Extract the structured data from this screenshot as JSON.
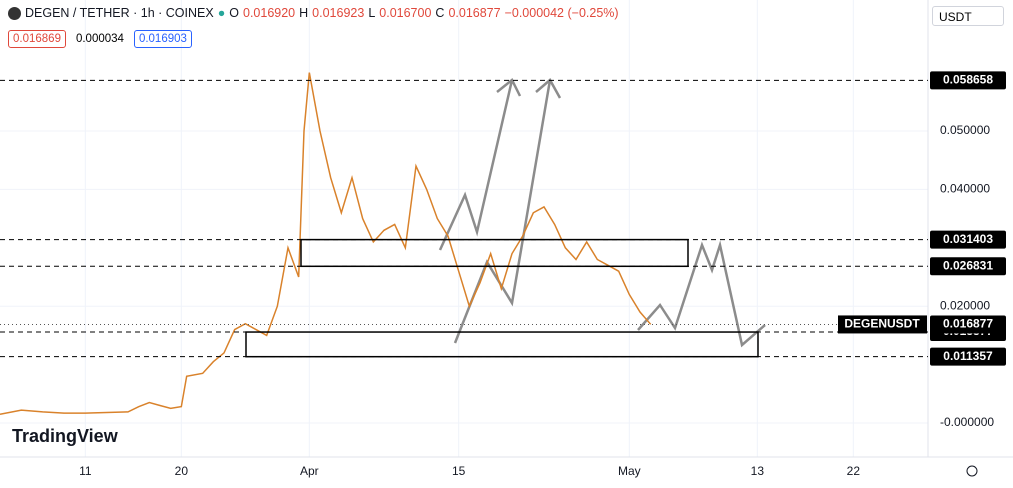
{
  "chart_data": {
    "type": "line",
    "title": "DEGEN / TETHER · 1h · COINEX",
    "ohlc": [
      {
        "name": "O",
        "value": 0.01692,
        "label": "0.016920"
      },
      {
        "name": "H",
        "value": 0.016923,
        "label": "0.016923"
      },
      {
        "name": "L",
        "value": 0.0167,
        "label": "0.016700"
      },
      {
        "name": "C",
        "value": 0.016877,
        "label": "0.016877"
      }
    ],
    "change": "−0.000042 (−0.25%)",
    "badges": [
      0.016869,
      3.4e-05,
      0.016903
    ],
    "currency": "USDT",
    "brand": "TradingView",
    "symbol": "DEGENUSDT",
    "last_price": 0.016877,
    "color": "#d9822b",
    "grid": true,
    "x": [
      63,
      65,
      67,
      69,
      71,
      73,
      75,
      76,
      77,
      78,
      79,
      80,
      80.5,
      82,
      83,
      84,
      85,
      86,
      87,
      88,
      89,
      90,
      91,
      91.5,
      92,
      93,
      94,
      95,
      96,
      97,
      98,
      99,
      100,
      101,
      102,
      103,
      104,
      105,
      106,
      107,
      108,
      109,
      110,
      111,
      112,
      113,
      114,
      115,
      116,
      117,
      118,
      119,
      120,
      121,
      122,
      123,
      124
    ],
    "values": [
      0.0015,
      0.0022,
      0.0019,
      0.0017,
      0.0017,
      0.0018,
      0.0019,
      0.0028,
      0.0035,
      0.003,
      0.0025,
      0.0028,
      0.008,
      0.0085,
      0.0105,
      0.012,
      0.016,
      0.017,
      0.016,
      0.015,
      0.02,
      0.03,
      0.025,
      0.05,
      0.06,
      0.05,
      0.042,
      0.036,
      0.042,
      0.035,
      0.031,
      0.033,
      0.034,
      0.03,
      0.044,
      0.04,
      0.035,
      0.032,
      0.026,
      0.02,
      0.024,
      0.029,
      0.023,
      0.029,
      0.032,
      0.036,
      0.037,
      0.034,
      0.03,
      0.028,
      0.031,
      0.028,
      0.027,
      0.026,
      0.022,
      0.019,
      0.0169
    ],
    "xlim": [
      63,
      150
    ],
    "ylim": [
      -0.00582,
      0.07243
    ],
    "xticks": [
      {
        "value": 71,
        "label": "11"
      },
      {
        "value": 80,
        "label": "20"
      },
      {
        "value": 92,
        "label": "Apr"
      },
      {
        "value": 106,
        "label": "15"
      },
      {
        "value": 122,
        "label": "May"
      },
      {
        "value": 134,
        "label": "13"
      },
      {
        "value": 143,
        "label": "22"
      }
    ],
    "yticks": [
      {
        "value": 0.05,
        "label": "0.050000"
      },
      {
        "value": 0.04,
        "label": "0.040000"
      },
      {
        "value": 0.02,
        "label": "0.020000"
      },
      {
        "value": 0,
        "label": "-0.000000"
      }
    ],
    "levels": [
      0.058658,
      0.031403,
      0.026831,
      0.015577,
      0.011357
    ]
  }
}
